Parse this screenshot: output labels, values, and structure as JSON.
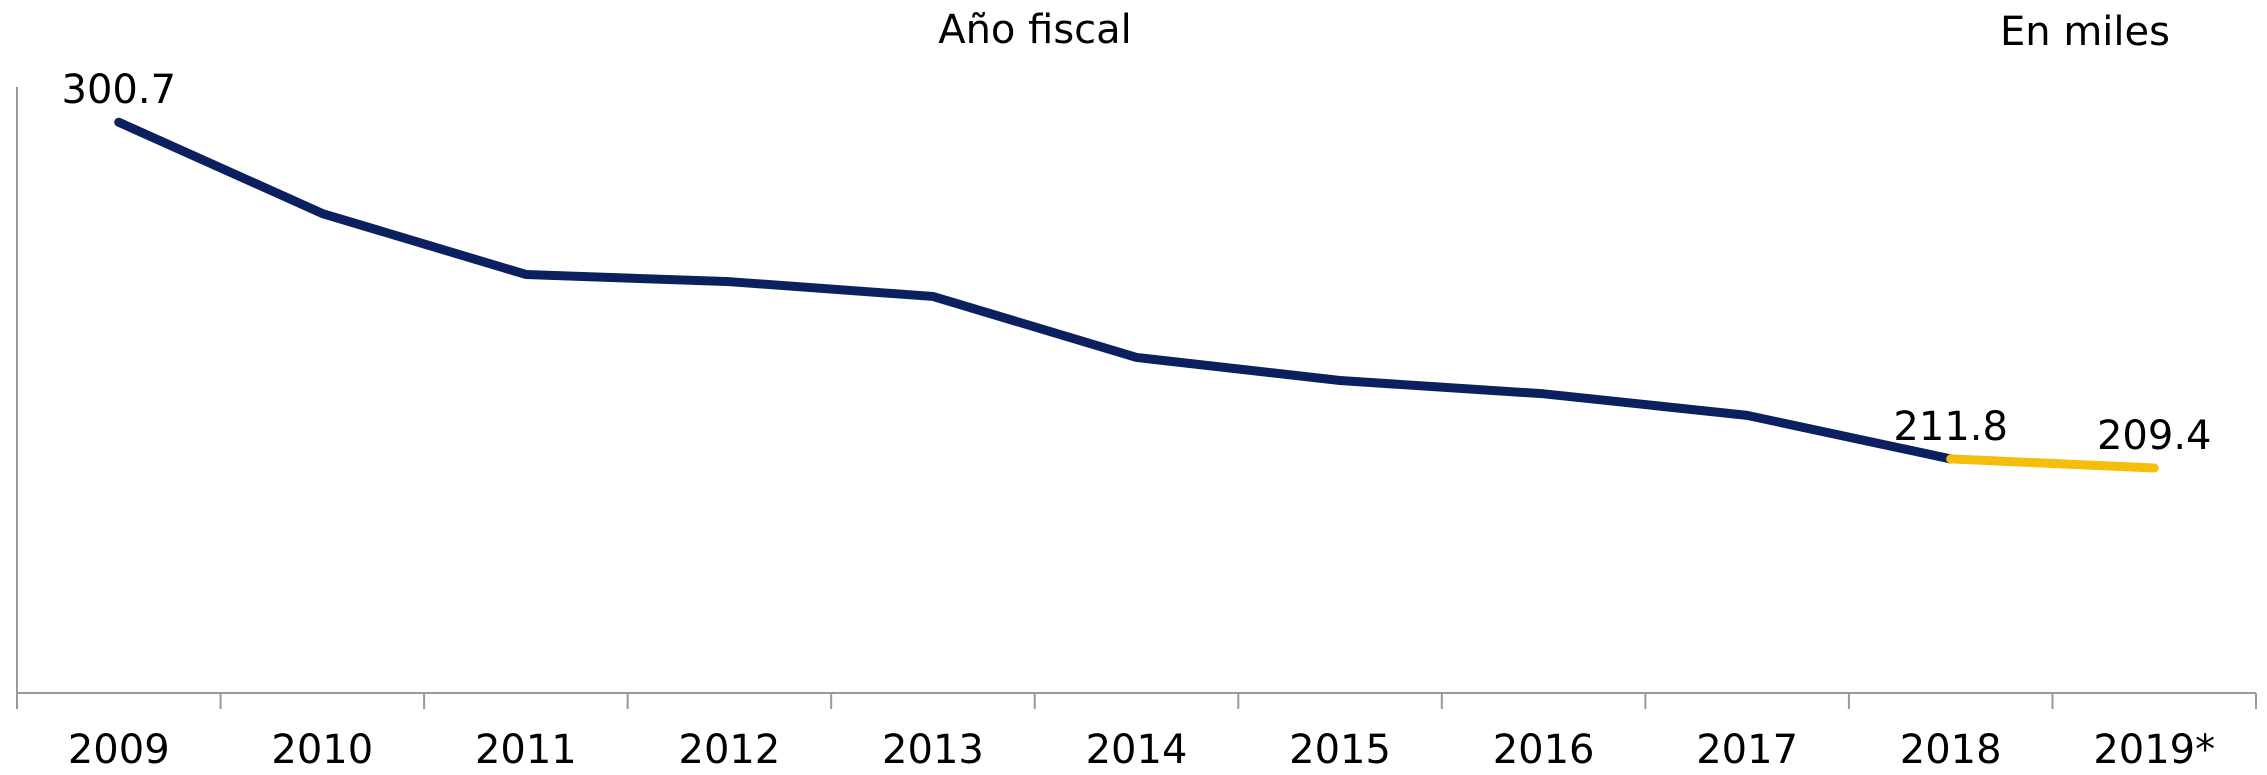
{
  "chart_data": {
    "type": "line",
    "title": "Año fiscal",
    "annotation": "En miles",
    "categories": [
      "2009",
      "2010",
      "2011",
      "2012",
      "2013",
      "2014",
      "2015",
      "2016",
      "2017",
      "2018",
      "2019*"
    ],
    "values": [
      300.7,
      276.6,
      260.5,
      258.6,
      254.7,
      238.6,
      232.5,
      229.0,
      223.3,
      211.8,
      209.4
    ],
    "show_labels": [
      true,
      false,
      false,
      false,
      false,
      false,
      false,
      false,
      false,
      true,
      true
    ],
    "projected": [
      false,
      false,
      false,
      false,
      false,
      false,
      false,
      false,
      false,
      false,
      true
    ],
    "color": "#0c1f5e",
    "projection_color": "#f5be0b",
    "ylim": [
      150,
      310
    ],
    "grid": false
  }
}
